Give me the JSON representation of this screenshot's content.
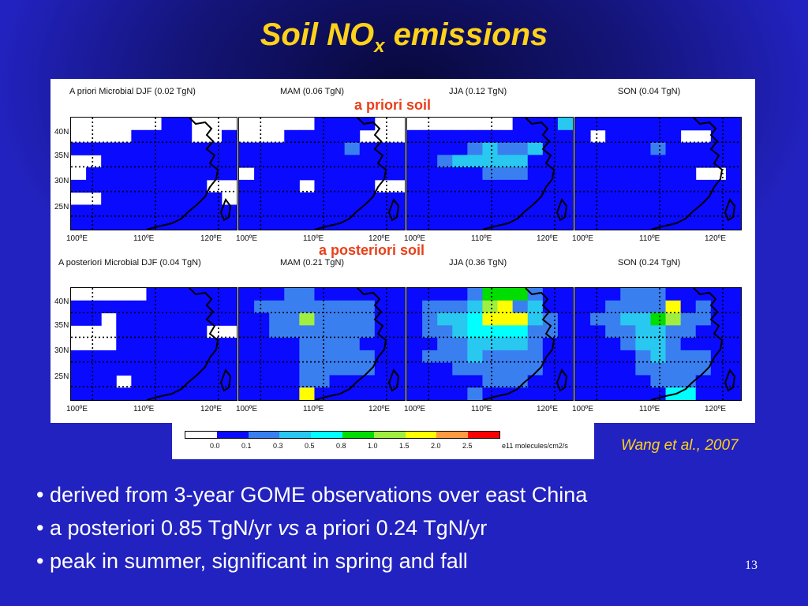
{
  "slide": {
    "title_main": "Soil NO",
    "title_sub": "x",
    "title_tail": " emissions",
    "page_number": "13"
  },
  "figure": {
    "overlay_prior": "a priori soil",
    "overlay_posterior": "a posteriori soil",
    "panel_titles_top": [
      "A priori Microbial DJF (0.02 TgN)",
      "MAM (0.06 TgN)",
      "JJA (0.12 TgN)",
      "SON (0.04 TgN)"
    ],
    "panel_titles_bottom": [
      "A posteriori Microbial DJF (0.04 TgN)",
      "MAM (0.21 TgN)",
      "JJA (0.36 TgN)",
      "SON (0.24 TgN)"
    ],
    "lat_labels": [
      "40N",
      "35N",
      "30N",
      "25N"
    ],
    "lon_labels": [
      "100ºE",
      "110ºE",
      "120ºE"
    ],
    "colorbar": {
      "ticks": [
        "0.0",
        "0.1",
        "0.3",
        "0.5",
        "0.8",
        "1.0",
        "1.5",
        "2.0",
        "2.5"
      ],
      "unit": "e11 molecules/cm2/s",
      "colors": [
        "#ffffff",
        "#0a0aff",
        "#3a7ff0",
        "#28c8f0",
        "#00ffff",
        "#00dd00",
        "#a0ee40",
        "#ffff00",
        "#ff9a40",
        "#ff0000"
      ]
    }
  },
  "citation": "Wang et al., 2007",
  "bullets": [
    {
      "text": "• derived from 3-year GOME observations over east China"
    },
    {
      "pre": "• a posteriori 0.85 TgN/yr ",
      "em": "vs",
      "post": " a priori 0.24 TgN/yr"
    },
    {
      "text": "• peak in summer, significant in spring and fall"
    }
  ],
  "maps": [
    {
      "rows": [
        "00000011000",
        "00001111001",
        "11111111111",
        "00111111111",
        "01111111111",
        "11111111100",
        "00111111110",
        "11111111111",
        "11111111111"
      ]
    },
    {
      "rows": [
        "00000111100",
        "00011111000",
        "11111112111",
        "11111111111",
        "01111111111",
        "11110111100",
        "11111111111",
        "11111111111",
        "11111111111"
      ]
    },
    {
      "rows": [
        "00000001113",
        "11111111111",
        "11112322311",
        "11233333111",
        "11111222111",
        "11111111111",
        "11111111111",
        "11111111111",
        "11111111111"
      ]
    },
    {
      "rows": [
        "11111111111",
        "10111110011",
        "11111211111",
        "11111111111",
        "11111111001",
        "11111111111",
        "11111111111",
        "11111111111",
        "11111111111"
      ]
    },
    {
      "rows": [
        "00000111111",
        "11111111111",
        "11011111111",
        "00011111100",
        "00011111111",
        "11111111111",
        "11111111111",
        "11101111111",
        "11111111111"
      ]
    },
    {
      "rows": [
        "11122111111",
        "12222222211",
        "11226222211",
        "11222222211",
        "11112222111",
        "11112222211",
        "11112222211",
        "11112211111",
        "11117111111"
      ]
    },
    {
      "rows": [
        "11112555211",
        "12223672311",
        "12334777321",
        "12234444221",
        "11223333211",
        "12223222211",
        "11122222211",
        "11111222111",
        "11112111111"
      ]
    },
    {
      "rows": [
        "11122211111",
        "11222271211",
        "12233562211",
        "11223322111",
        "11123321111",
        "11112322211",
        "11112222211",
        "11111222111",
        "11111144111"
      ]
    }
  ]
}
